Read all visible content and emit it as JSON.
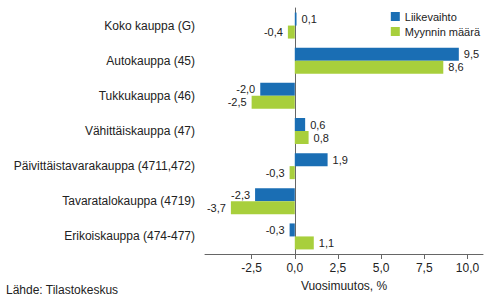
{
  "chart_data": {
    "type": "bar",
    "orientation": "horizontal",
    "categories": [
      "Koko kauppa (G)",
      "Autokauppa (45)",
      "Tukkukauppa (46)",
      "Vähittäiskauppa (47)",
      "Päivittäistavarakauppa (4711,472)",
      "Tavaratalokauppa (4719)",
      "Erikoiskauppa (474-477)"
    ],
    "series": [
      {
        "name": "Liikevaihto",
        "color": "#1a6eb4",
        "values": [
          0.1,
          9.5,
          -2.0,
          0.6,
          1.9,
          -2.3,
          -0.3
        ],
        "value_labels": [
          "0,1",
          "9,5",
          "-2,0",
          "0,6",
          "1,9",
          "-2,3",
          "-0,3"
        ]
      },
      {
        "name": "Myynnin määrä",
        "color": "#a8cf3c",
        "values": [
          -0.4,
          8.6,
          -2.5,
          0.8,
          -0.3,
          -3.7,
          1.1
        ],
        "value_labels": [
          "-0,4",
          "8,6",
          "-2,5",
          "0,8",
          "-0,3",
          "-3,7",
          "1,1"
        ]
      }
    ],
    "xlabel": "Vuosimuutos, %",
    "xlim": [
      -5.2,
      10.9
    ],
    "xticks": [
      {
        "value": -2.5,
        "label": "-2,5"
      },
      {
        "value": 0,
        "label": "0,0"
      },
      {
        "value": 2.5,
        "label": "2,5"
      },
      {
        "value": 5,
        "label": "5,0"
      },
      {
        "value": 7.5,
        "label": "7,5"
      },
      {
        "value": 10,
        "label": "10,0"
      }
    ],
    "grid": false,
    "legend": "upper right",
    "data_labels": true,
    "note": "Lähde: Tilastokeskus"
  }
}
